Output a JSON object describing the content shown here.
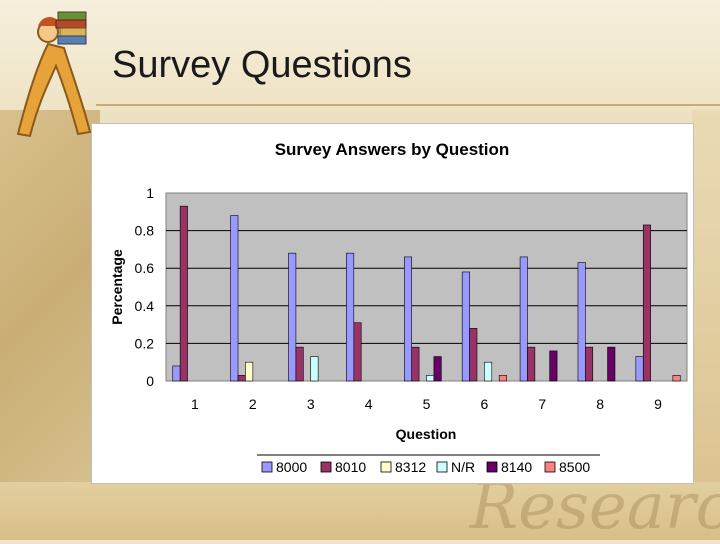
{
  "slide": {
    "title": "Survey Questions",
    "watermark": "Research"
  },
  "chart_data": {
    "type": "bar",
    "title": "Survey Answers by Question",
    "xlabel": "Question",
    "ylabel": "Percentage",
    "ylim": [
      0,
      1
    ],
    "yticks": [
      "0",
      "0.2",
      "0.4",
      "0.6",
      "0.8",
      "1"
    ],
    "categories": [
      "1",
      "2",
      "3",
      "4",
      "5",
      "6",
      "7",
      "8",
      "9"
    ],
    "grid": true,
    "legend": "bottom",
    "plot_bg": "#c0c0c0",
    "series": [
      {
        "name": "8000",
        "color": "#9999ff",
        "values": [
          0.08,
          0.88,
          0.68,
          0.68,
          0.66,
          0.58,
          0.66,
          0.63,
          0.13
        ]
      },
      {
        "name": "8010",
        "color": "#993366",
        "values": [
          0.93,
          0.03,
          0.18,
          0.31,
          0.18,
          0.28,
          0.18,
          0.18,
          0.83
        ]
      },
      {
        "name": "8312",
        "color": "#ffffcc",
        "values": [
          0,
          0.1,
          0,
          0,
          0,
          0,
          0,
          0,
          0
        ]
      },
      {
        "name": "N/R",
        "color": "#ccffff",
        "values": [
          0,
          0,
          0.13,
          0,
          0.03,
          0.1,
          0,
          0,
          0
        ]
      },
      {
        "name": "8140",
        "color": "#660066",
        "values": [
          0,
          0,
          0,
          0,
          0.13,
          0,
          0.16,
          0.18,
          0
        ]
      },
      {
        "name": "8500",
        "color": "#ff8080",
        "values": [
          0,
          0,
          0,
          0,
          0,
          0.03,
          0,
          0,
          0.03
        ]
      }
    ]
  }
}
